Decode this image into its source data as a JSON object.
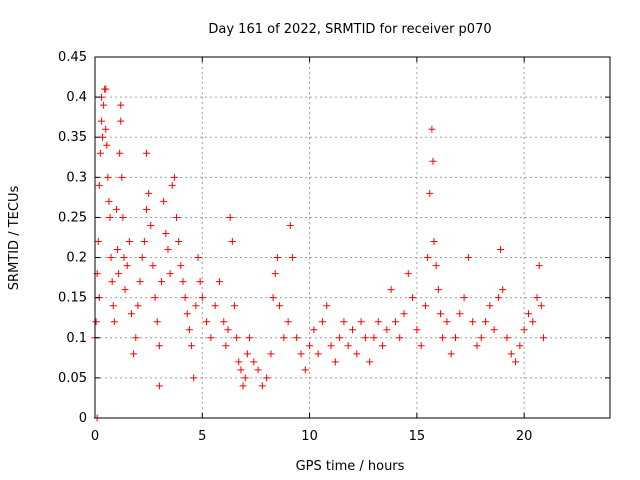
{
  "chart_data": {
    "type": "scatter",
    "title": "Day 161 of 2022, SRMTID for receiver p070",
    "xlabel": "GPS time / hours",
    "ylabel": "SRMTID / TECUs",
    "xlim": [
      0,
      24
    ],
    "ylim": [
      0,
      0.45
    ],
    "xticks": [
      0,
      5,
      10,
      15,
      20
    ],
    "xtick_labels": [
      "0",
      "5",
      "10",
      "15",
      "20"
    ],
    "yticks": [
      0,
      0.05,
      0.1,
      0.15,
      0.2,
      0.25,
      0.3,
      0.35,
      0.4,
      0.45
    ],
    "ytick_labels": [
      "0",
      "0.05",
      "0.1",
      "0.15",
      "0.2",
      "0.25",
      "0.3",
      "0.35",
      "0.4",
      "0.45"
    ],
    "grid": true,
    "marker": "+",
    "color": "#ff0000",
    "series": [
      {
        "name": "SRMTID p070",
        "points": [
          [
            0.0,
            0.1
          ],
          [
            0.05,
            0.12
          ],
          [
            0.1,
            0.18
          ],
          [
            0.1,
            0.0
          ],
          [
            0.15,
            0.22
          ],
          [
            0.2,
            0.15
          ],
          [
            0.2,
            0.29
          ],
          [
            0.25,
            0.33
          ],
          [
            0.3,
            0.37
          ],
          [
            0.3,
            0.4
          ],
          [
            0.35,
            0.35
          ],
          [
            0.4,
            0.39
          ],
          [
            0.45,
            0.41
          ],
          [
            0.5,
            0.36
          ],
          [
            0.55,
            0.34
          ],
          [
            0.5,
            0.41
          ],
          [
            0.6,
            0.3
          ],
          [
            0.65,
            0.27
          ],
          [
            0.7,
            0.25
          ],
          [
            0.75,
            0.2
          ],
          [
            0.8,
            0.17
          ],
          [
            0.85,
            0.14
          ],
          [
            0.9,
            0.12
          ],
          [
            1.0,
            0.26
          ],
          [
            1.05,
            0.21
          ],
          [
            1.1,
            0.18
          ],
          [
            1.15,
            0.33
          ],
          [
            1.2,
            0.37
          ],
          [
            1.2,
            0.39
          ],
          [
            1.25,
            0.3
          ],
          [
            1.3,
            0.25
          ],
          [
            1.35,
            0.2
          ],
          [
            1.4,
            0.16
          ],
          [
            1.5,
            0.19
          ],
          [
            1.6,
            0.22
          ],
          [
            1.7,
            0.13
          ],
          [
            1.8,
            0.08
          ],
          [
            1.9,
            0.1
          ],
          [
            2.0,
            0.14
          ],
          [
            2.1,
            0.17
          ],
          [
            2.2,
            0.2
          ],
          [
            2.3,
            0.22
          ],
          [
            2.4,
            0.26
          ],
          [
            2.4,
            0.33
          ],
          [
            2.5,
            0.28
          ],
          [
            2.6,
            0.24
          ],
          [
            2.7,
            0.19
          ],
          [
            2.8,
            0.15
          ],
          [
            2.9,
            0.12
          ],
          [
            3.0,
            0.09
          ],
          [
            3.0,
            0.04
          ],
          [
            3.1,
            0.17
          ],
          [
            3.2,
            0.27
          ],
          [
            3.3,
            0.23
          ],
          [
            3.4,
            0.21
          ],
          [
            3.5,
            0.18
          ],
          [
            3.6,
            0.29
          ],
          [
            3.7,
            0.3
          ],
          [
            3.8,
            0.25
          ],
          [
            3.9,
            0.22
          ],
          [
            4.0,
            0.19
          ],
          [
            4.1,
            0.17
          ],
          [
            4.2,
            0.15
          ],
          [
            4.3,
            0.13
          ],
          [
            4.4,
            0.11
          ],
          [
            4.5,
            0.09
          ],
          [
            4.6,
            0.05
          ],
          [
            4.7,
            0.14
          ],
          [
            4.8,
            0.2
          ],
          [
            4.9,
            0.17
          ],
          [
            5.0,
            0.15
          ],
          [
            5.2,
            0.12
          ],
          [
            5.4,
            0.1
          ],
          [
            5.6,
            0.14
          ],
          [
            5.8,
            0.17
          ],
          [
            6.0,
            0.12
          ],
          [
            6.1,
            0.09
          ],
          [
            6.2,
            0.11
          ],
          [
            6.3,
            0.25
          ],
          [
            6.4,
            0.22
          ],
          [
            6.5,
            0.14
          ],
          [
            6.6,
            0.1
          ],
          [
            6.7,
            0.07
          ],
          [
            6.8,
            0.06
          ],
          [
            6.9,
            0.04
          ],
          [
            7.0,
            0.05
          ],
          [
            7.1,
            0.08
          ],
          [
            7.2,
            0.1
          ],
          [
            7.4,
            0.07
          ],
          [
            7.6,
            0.06
          ],
          [
            7.8,
            0.04
          ],
          [
            8.0,
            0.05
          ],
          [
            8.2,
            0.08
          ],
          [
            8.3,
            0.15
          ],
          [
            8.4,
            0.18
          ],
          [
            8.5,
            0.2
          ],
          [
            8.6,
            0.14
          ],
          [
            8.8,
            0.1
          ],
          [
            9.0,
            0.12
          ],
          [
            9.1,
            0.24
          ],
          [
            9.2,
            0.2
          ],
          [
            9.4,
            0.1
          ],
          [
            9.6,
            0.08
          ],
          [
            9.8,
            0.06
          ],
          [
            10.0,
            0.09
          ],
          [
            10.2,
            0.11
          ],
          [
            10.4,
            0.08
          ],
          [
            10.6,
            0.12
          ],
          [
            10.8,
            0.14
          ],
          [
            11.0,
            0.09
          ],
          [
            11.2,
            0.07
          ],
          [
            11.4,
            0.1
          ],
          [
            11.6,
            0.12
          ],
          [
            11.8,
            0.09
          ],
          [
            12.0,
            0.11
          ],
          [
            12.2,
            0.08
          ],
          [
            12.4,
            0.12
          ],
          [
            12.6,
            0.1
          ],
          [
            12.8,
            0.07
          ],
          [
            13.0,
            0.1
          ],
          [
            13.2,
            0.12
          ],
          [
            13.4,
            0.09
          ],
          [
            13.6,
            0.11
          ],
          [
            13.8,
            0.16
          ],
          [
            14.0,
            0.12
          ],
          [
            14.2,
            0.1
          ],
          [
            14.4,
            0.13
          ],
          [
            14.6,
            0.18
          ],
          [
            14.8,
            0.15
          ],
          [
            15.0,
            0.11
          ],
          [
            15.2,
            0.09
          ],
          [
            15.4,
            0.14
          ],
          [
            15.5,
            0.2
          ],
          [
            15.6,
            0.28
          ],
          [
            15.7,
            0.36
          ],
          [
            15.75,
            0.32
          ],
          [
            15.8,
            0.22
          ],
          [
            15.9,
            0.19
          ],
          [
            16.0,
            0.16
          ],
          [
            16.1,
            0.13
          ],
          [
            16.2,
            0.1
          ],
          [
            16.4,
            0.12
          ],
          [
            16.6,
            0.08
          ],
          [
            16.8,
            0.1
          ],
          [
            17.0,
            0.13
          ],
          [
            17.2,
            0.15
          ],
          [
            17.4,
            0.2
          ],
          [
            17.6,
            0.12
          ],
          [
            17.8,
            0.09
          ],
          [
            18.0,
            0.1
          ],
          [
            18.2,
            0.12
          ],
          [
            18.4,
            0.14
          ],
          [
            18.6,
            0.11
          ],
          [
            18.8,
            0.15
          ],
          [
            18.9,
            0.21
          ],
          [
            19.0,
            0.16
          ],
          [
            19.2,
            0.1
          ],
          [
            19.4,
            0.08
          ],
          [
            19.6,
            0.07
          ],
          [
            19.8,
            0.09
          ],
          [
            20.0,
            0.11
          ],
          [
            20.2,
            0.13
          ],
          [
            20.4,
            0.12
          ],
          [
            20.6,
            0.15
          ],
          [
            20.7,
            0.19
          ],
          [
            20.8,
            0.14
          ],
          [
            20.9,
            0.1
          ]
        ]
      }
    ]
  }
}
